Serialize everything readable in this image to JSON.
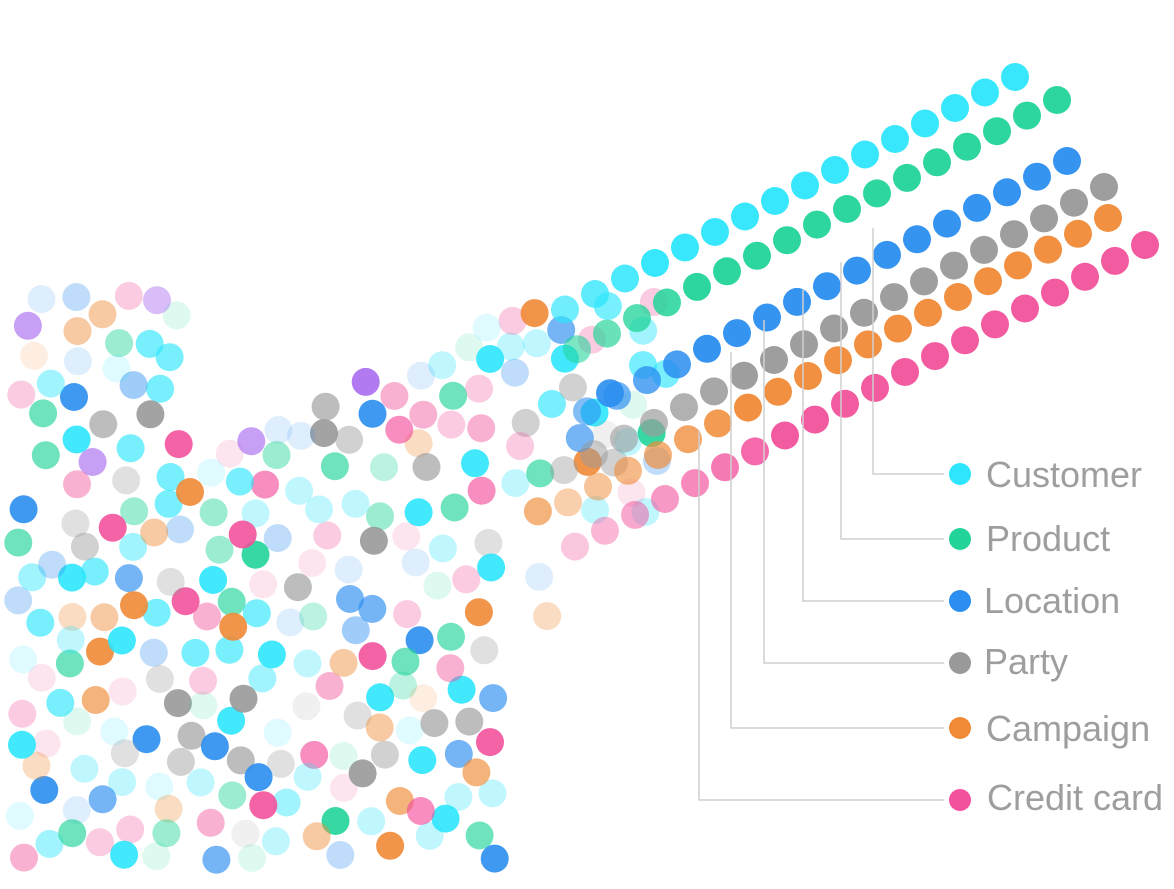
{
  "categories": [
    {
      "key": "customer",
      "label": "Customer",
      "color": "#2ee6fc"
    },
    {
      "key": "product",
      "label": "Product",
      "color": "#22d49a"
    },
    {
      "key": "location",
      "label": "Location",
      "color": "#2b8ef0"
    },
    {
      "key": "party",
      "label": "Party",
      "color": "#999999"
    },
    {
      "key": "campaign",
      "label": "Campaign",
      "color": "#f08a36"
    },
    {
      "key": "credit_card",
      "label": "Credit card",
      "color": "#f2529c"
    },
    {
      "key": "other",
      "label": "",
      "color": "#a96cf0"
    }
  ]
}
